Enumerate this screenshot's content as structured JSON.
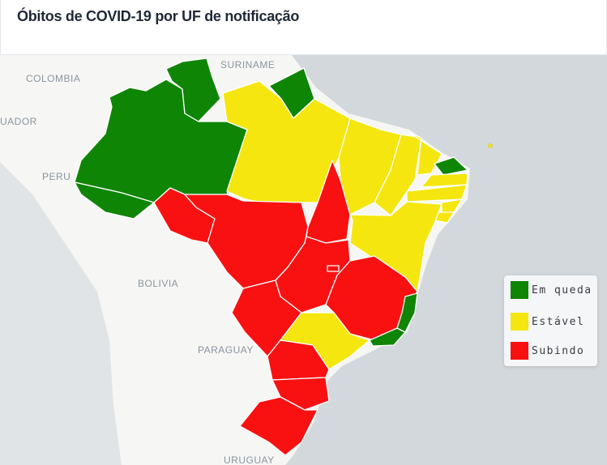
{
  "header": {
    "title": "Óbitos de COVID-19 por UF de notificação"
  },
  "colors": {
    "em_queda": "#0f8505",
    "estavel": "#f5e60f",
    "subindo": "#f91111",
    "ocean": "#d3d8dc",
    "land": "#f6f6f4"
  },
  "map": {
    "country_labels": [
      "SURINAME",
      "COLOMBIA",
      "UADOR",
      "PERU",
      "BOLIVIA",
      "PARAGUAY",
      "URUGUAY"
    ],
    "states": [
      {
        "uf": "AM",
        "status": "em_queda"
      },
      {
        "uf": "RR",
        "status": "em_queda"
      },
      {
        "uf": "AC",
        "status": "em_queda"
      },
      {
        "uf": "AP",
        "status": "em_queda"
      },
      {
        "uf": "PA",
        "status": "estavel"
      },
      {
        "uf": "MA",
        "status": "estavel"
      },
      {
        "uf": "PI",
        "status": "estavel"
      },
      {
        "uf": "CE",
        "status": "estavel"
      },
      {
        "uf": "RN",
        "status": "em_queda"
      },
      {
        "uf": "PB",
        "status": "estavel"
      },
      {
        "uf": "PE",
        "status": "estavel"
      },
      {
        "uf": "AL",
        "status": "estavel"
      },
      {
        "uf": "SE",
        "status": "estavel"
      },
      {
        "uf": "BA",
        "status": "estavel"
      },
      {
        "uf": "RO",
        "status": "subindo"
      },
      {
        "uf": "MT",
        "status": "subindo"
      },
      {
        "uf": "TO",
        "status": "subindo"
      },
      {
        "uf": "GO",
        "status": "subindo"
      },
      {
        "uf": "DF",
        "status": "subindo"
      },
      {
        "uf": "MG",
        "status": "subindo"
      },
      {
        "uf": "MS",
        "status": "subindo"
      },
      {
        "uf": "SP",
        "status": "estavel"
      },
      {
        "uf": "RJ",
        "status": "em_queda"
      },
      {
        "uf": "ES",
        "status": "em_queda"
      },
      {
        "uf": "PR",
        "status": "subindo"
      },
      {
        "uf": "SC",
        "status": "subindo"
      },
      {
        "uf": "RS",
        "status": "subindo"
      }
    ]
  },
  "legend": {
    "items": [
      {
        "key": "em_queda",
        "label": "Em queda",
        "color": "#0f8505"
      },
      {
        "key": "estavel",
        "label": "Estável",
        "color": "#f5e60f"
      },
      {
        "key": "subindo",
        "label": "Subindo",
        "color": "#f91111"
      }
    ]
  }
}
